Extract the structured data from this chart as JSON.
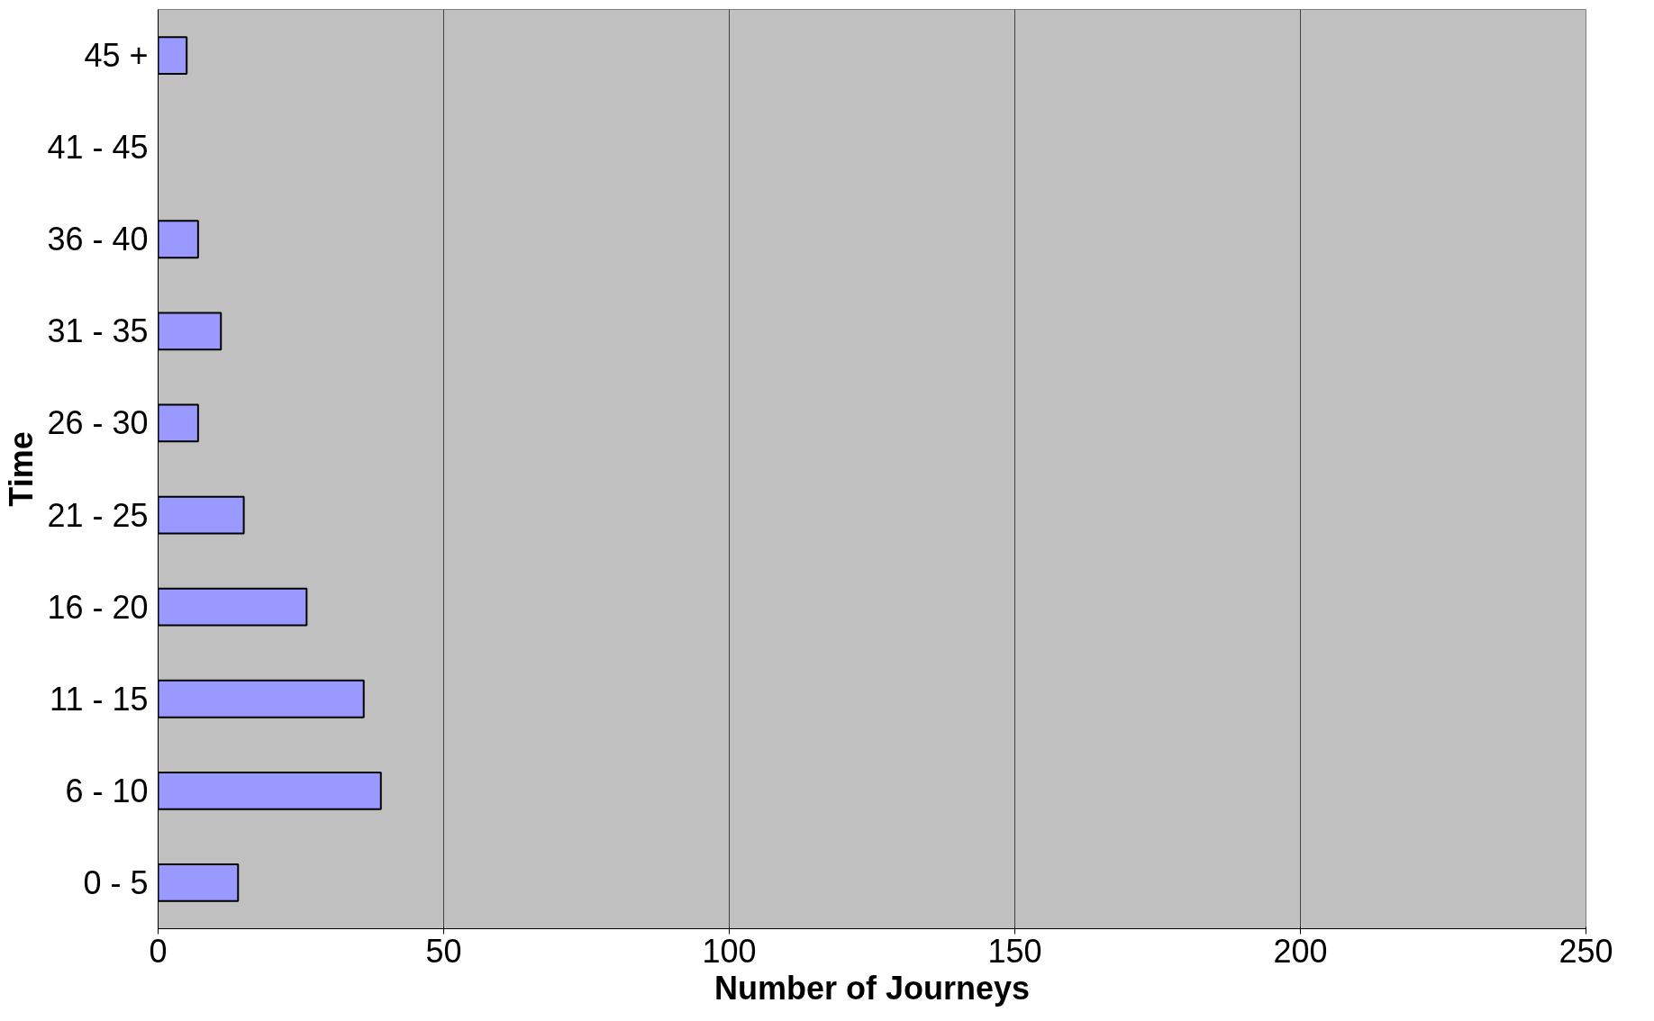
{
  "chart_data": {
    "type": "bar",
    "orientation": "horizontal",
    "xlabel": "Number of Journeys",
    "ylabel": "Time",
    "categories": [
      "45 +",
      "41 - 45",
      "36 - 40",
      "31 - 35",
      "26 - 30",
      "21 - 25",
      "16 - 20",
      "11 - 15",
      "6 - 10",
      "0 - 5"
    ],
    "values": [
      5,
      0,
      7,
      11,
      7,
      15,
      26,
      36,
      39,
      14
    ],
    "color": "#9999ff",
    "xlim": [
      0,
      250
    ],
    "xticks": [
      0,
      50,
      100,
      150,
      200,
      250
    ],
    "grid": "x"
  }
}
